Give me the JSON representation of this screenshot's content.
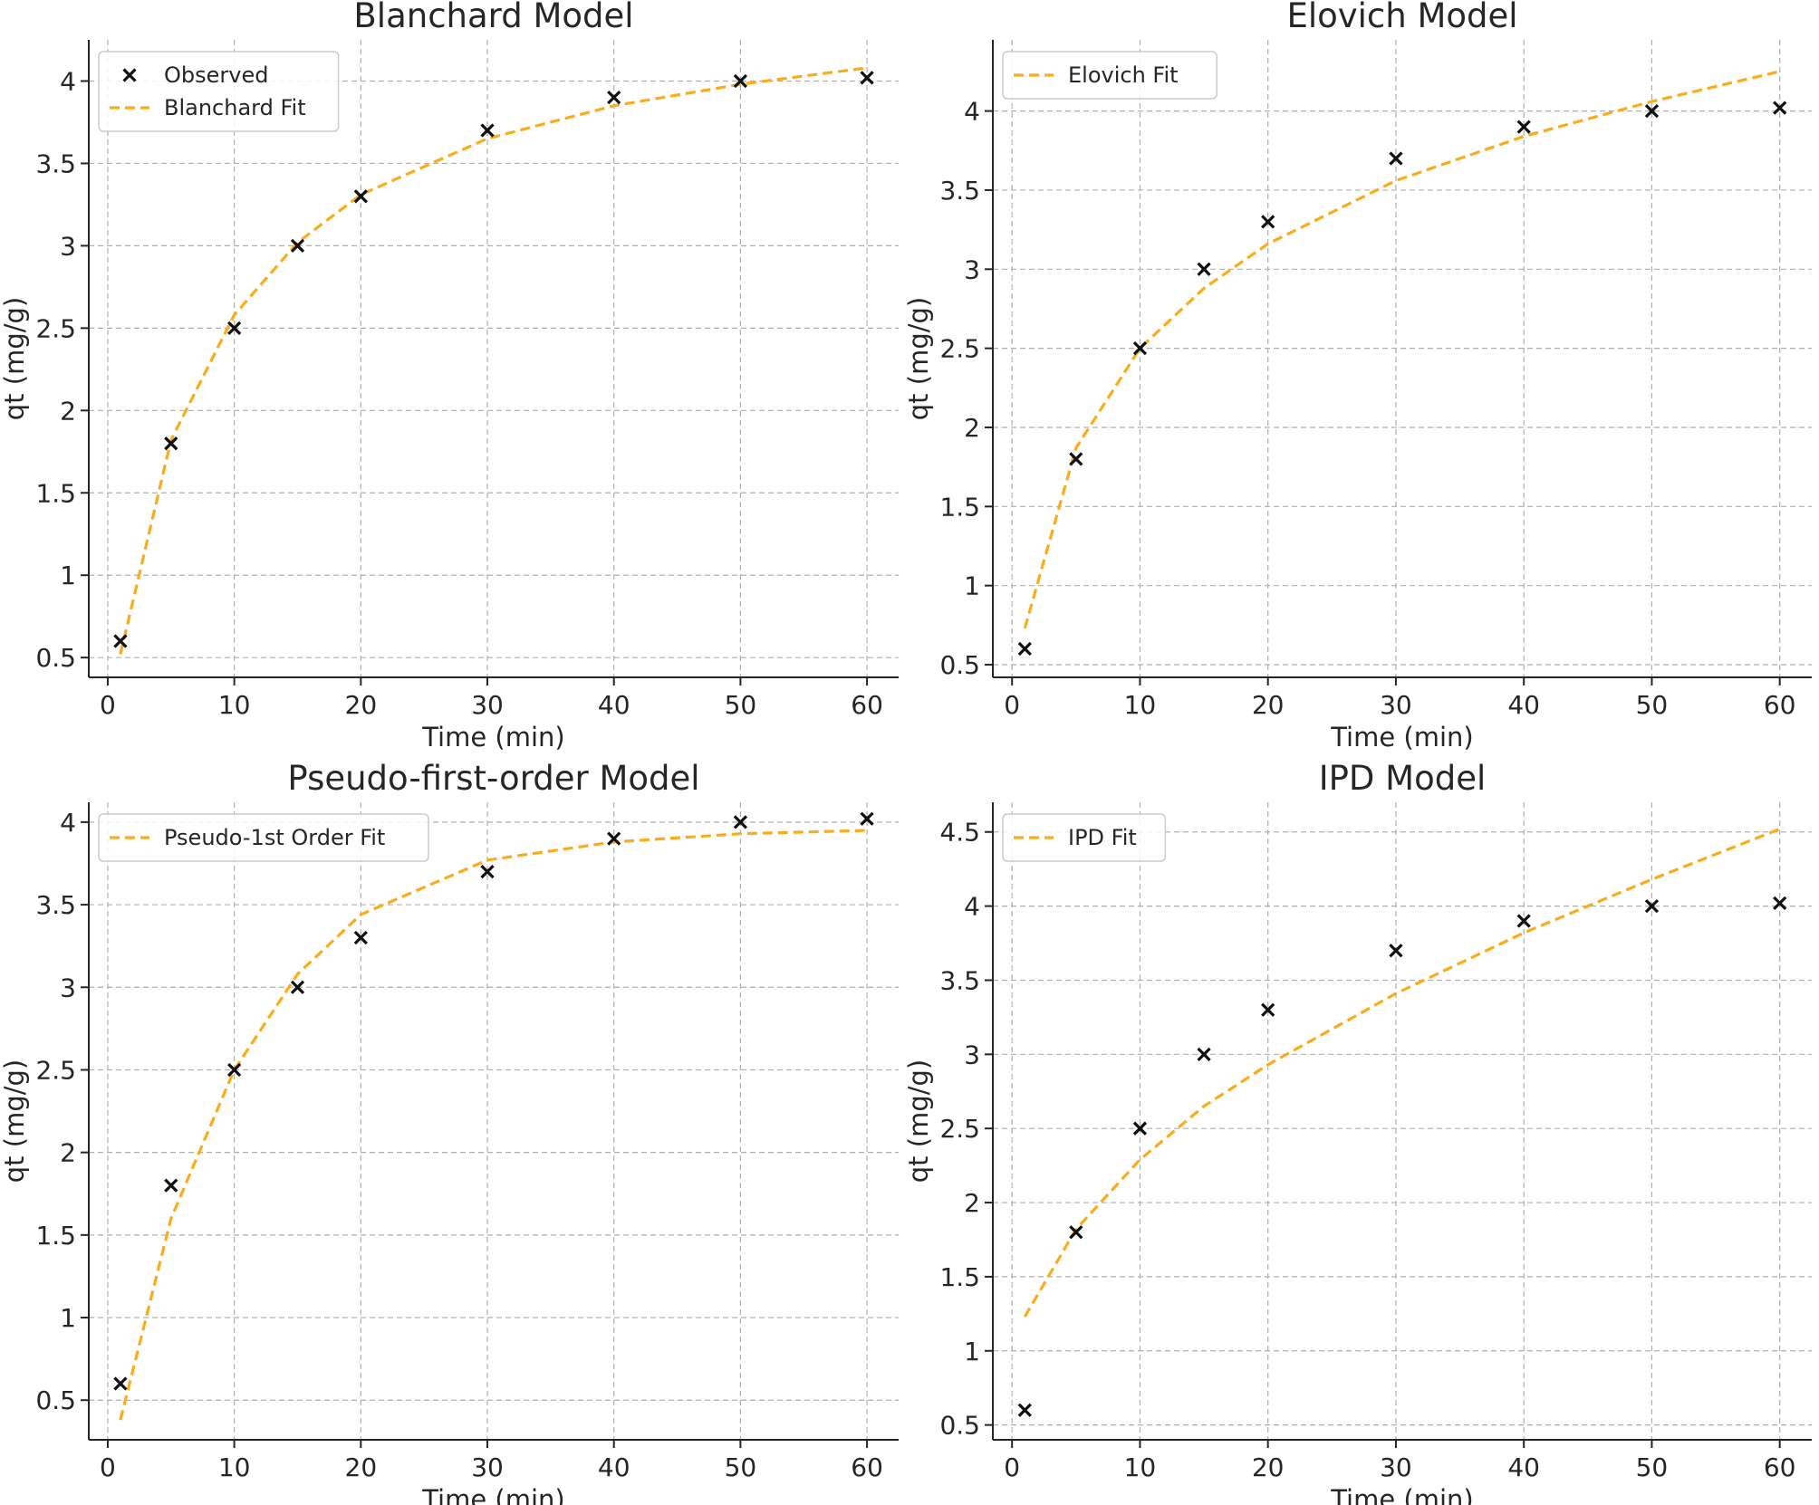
{
  "colors": {
    "fit": "#fbac1b",
    "observed": "#111111"
  },
  "chart_data": [
    {
      "type": "line",
      "title": "Blanchard Model",
      "xlabel": "Time (min)",
      "ylabel": "qt (mg/g)",
      "xlim": [
        -1.5,
        62.5
      ],
      "ylim": [
        0.38,
        4.25
      ],
      "xticks": [
        0,
        10,
        20,
        30,
        40,
        50,
        60
      ],
      "yticks": [
        0.5,
        1.0,
        1.5,
        2.0,
        2.5,
        3.0,
        3.5,
        4.0
      ],
      "grid": true,
      "legend": "top-left",
      "series": [
        {
          "name": "Observed",
          "kind": "scatter",
          "marker": "x",
          "x": [
            1,
            5,
            10,
            15,
            20,
            30,
            40,
            50,
            60
          ],
          "y": [
            0.6,
            1.8,
            2.5,
            3.0,
            3.3,
            3.7,
            3.9,
            4.0,
            4.02
          ]
        },
        {
          "name": "Blanchard Fit",
          "kind": "line",
          "style": "dashed",
          "x": [
            1,
            5,
            10,
            15,
            20,
            30,
            40,
            50,
            60
          ],
          "y": [
            0.52,
            1.82,
            2.58,
            3.02,
            3.31,
            3.65,
            3.85,
            3.98,
            4.08
          ]
        }
      ]
    },
    {
      "type": "line",
      "title": "Elovich Model",
      "xlabel": "Time (min)",
      "ylabel": "qt (mg/g)",
      "xlim": [
        -1.5,
        62.5
      ],
      "ylim": [
        0.42,
        4.45
      ],
      "xticks": [
        0,
        10,
        20,
        30,
        40,
        50,
        60
      ],
      "yticks": [
        0.5,
        1.0,
        1.5,
        2.0,
        2.5,
        3.0,
        3.5,
        4.0
      ],
      "grid": true,
      "legend": "top-left",
      "series": [
        {
          "name": "",
          "kind": "scatter",
          "marker": "x",
          "x": [
            1,
            5,
            10,
            15,
            20,
            30,
            40,
            50,
            60
          ],
          "y": [
            0.6,
            1.8,
            2.5,
            3.0,
            3.3,
            3.7,
            3.9,
            4.0,
            4.02
          ]
        },
        {
          "name": "Elovich Fit",
          "kind": "line",
          "style": "dashed",
          "x": [
            1,
            5,
            10,
            15,
            20,
            30,
            40,
            50,
            60
          ],
          "y": [
            0.73,
            1.87,
            2.5,
            2.88,
            3.16,
            3.56,
            3.84,
            4.06,
            4.25
          ]
        }
      ]
    },
    {
      "type": "line",
      "title": "Pseudo-first-order Model",
      "xlabel": "Time (min)",
      "ylabel": "qt (mg/g)",
      "xlim": [
        -1.5,
        62.5
      ],
      "ylim": [
        0.26,
        4.12
      ],
      "xticks": [
        0,
        10,
        20,
        30,
        40,
        50,
        60
      ],
      "yticks": [
        0.5,
        1.0,
        1.5,
        2.0,
        2.5,
        3.0,
        3.5,
        4.0
      ],
      "grid": true,
      "legend": "top-left",
      "series": [
        {
          "name": "",
          "kind": "scatter",
          "marker": "x",
          "x": [
            1,
            5,
            10,
            15,
            20,
            30,
            40,
            50,
            60
          ],
          "y": [
            0.6,
            1.8,
            2.5,
            3.0,
            3.3,
            3.7,
            3.9,
            4.0,
            4.02
          ]
        },
        {
          "name": "Pseudo-1st Order Fit",
          "kind": "line",
          "style": "dashed",
          "x": [
            1,
            5,
            10,
            15,
            20,
            30,
            40,
            50,
            60
          ],
          "y": [
            0.38,
            1.6,
            2.5,
            3.08,
            3.44,
            3.77,
            3.88,
            3.93,
            3.95
          ]
        }
      ]
    },
    {
      "type": "line",
      "title": "IPD Model",
      "xlabel": "Time (min)",
      "ylabel": "qt (mg/g)",
      "xlim": [
        -1.5,
        62.5
      ],
      "ylim": [
        0.4,
        4.7
      ],
      "xticks": [
        0,
        10,
        20,
        30,
        40,
        50,
        60
      ],
      "yticks": [
        0.5,
        1.0,
        1.5,
        2.0,
        2.5,
        3.0,
        3.5,
        4.0,
        4.5
      ],
      "grid": true,
      "legend": "top-left",
      "series": [
        {
          "name": "",
          "kind": "scatter",
          "marker": "x",
          "x": [
            1,
            5,
            10,
            15,
            20,
            30,
            40,
            50,
            60
          ],
          "y": [
            0.6,
            1.8,
            2.5,
            3.0,
            3.3,
            3.7,
            3.9,
            4.0,
            4.02
          ]
        },
        {
          "name": "IPD Fit",
          "kind": "line",
          "style": "dashed",
          "x": [
            1,
            5,
            10,
            15,
            20,
            30,
            40,
            50,
            60
          ],
          "y": [
            1.23,
            1.82,
            2.29,
            2.65,
            2.93,
            3.41,
            3.82,
            4.18,
            4.52
          ]
        }
      ]
    }
  ]
}
